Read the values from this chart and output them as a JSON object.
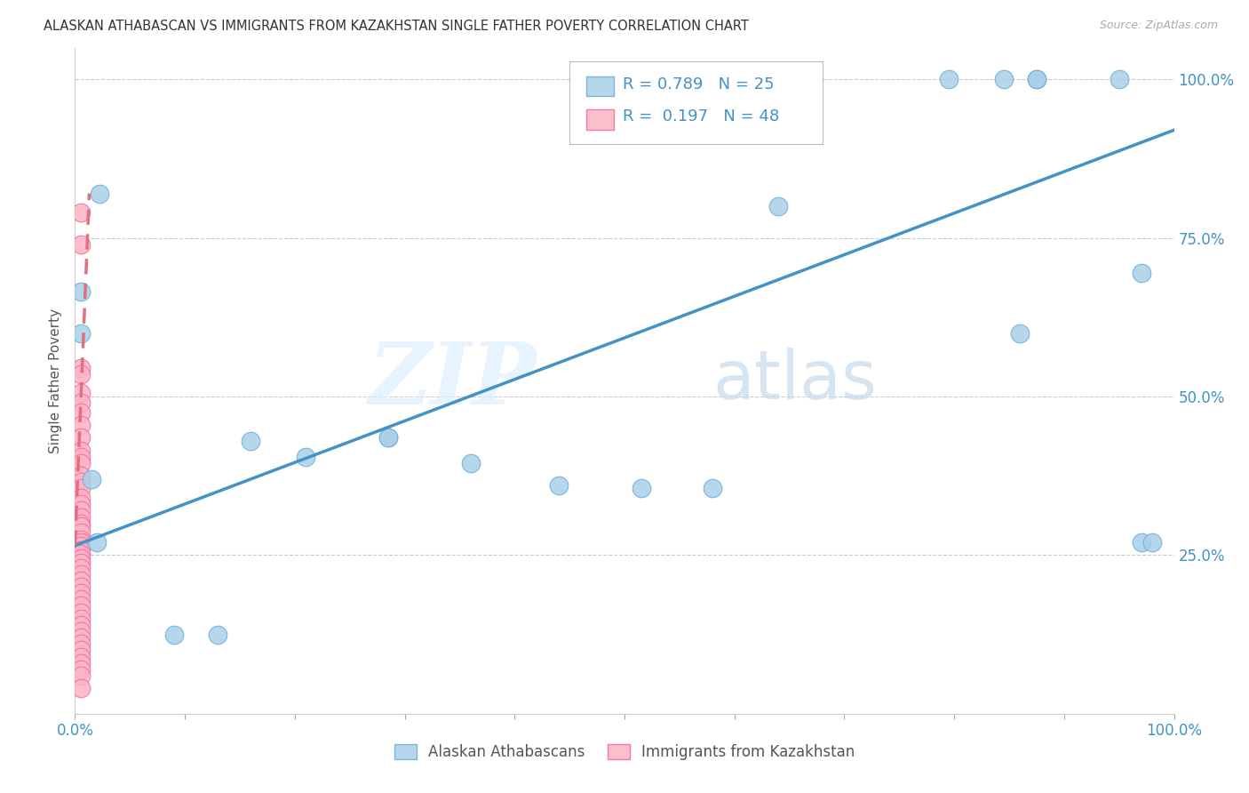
{
  "title": "ALASKAN ATHABASCAN VS IMMIGRANTS FROM KAZAKHSTAN SINGLE FATHER POVERTY CORRELATION CHART",
  "source": "Source: ZipAtlas.com",
  "ylabel": "Single Father Poverty",
  "watermark_zip": "ZIP",
  "watermark_atlas": "atlas",
  "legend_blue_r": "0.789",
  "legend_blue_n": "25",
  "legend_pink_r": "0.197",
  "legend_pink_n": "48",
  "legend1_label": "Alaskan Athabascans",
  "legend2_label": "Immigrants from Kazakhstan",
  "blue_color": "#a8cfe8",
  "blue_edge_color": "#6baed6",
  "pink_color": "#fbb4c3",
  "pink_edge_color": "#f768a1",
  "trendline_blue": "#4292c6",
  "trendline_pink": "#e07080",
  "blue_scatter": {
    "x": [
      0.022,
      0.005,
      0.005,
      0.015,
      0.16,
      0.21,
      0.285,
      0.36,
      0.285,
      0.44,
      0.58,
      0.64,
      0.795,
      0.845,
      0.86,
      0.875,
      0.875,
      0.95,
      0.97,
      0.97,
      0.98,
      0.02,
      0.09,
      0.13,
      0.515
    ],
    "y": [
      0.82,
      0.665,
      0.6,
      0.37,
      0.43,
      0.405,
      0.435,
      0.395,
      0.435,
      0.36,
      0.355,
      0.8,
      1.0,
      1.0,
      0.6,
      1.0,
      1.0,
      1.0,
      0.695,
      0.27,
      0.27,
      0.27,
      0.125,
      0.125,
      0.355
    ]
  },
  "pink_scatter": {
    "x": [
      0.005,
      0.005,
      0.005,
      0.005,
      0.005,
      0.005,
      0.005,
      0.005,
      0.005,
      0.005,
      0.005,
      0.005,
      0.005,
      0.005,
      0.005,
      0.005,
      0.005,
      0.005,
      0.005,
      0.005,
      0.005,
      0.005,
      0.005,
      0.005,
      0.005,
      0.005,
      0.005,
      0.005,
      0.005,
      0.005,
      0.005,
      0.005,
      0.005,
      0.005,
      0.005,
      0.005,
      0.005,
      0.005,
      0.005,
      0.005,
      0.005,
      0.005,
      0.005,
      0.005,
      0.005,
      0.005,
      0.005,
      0.005
    ],
    "y": [
      0.79,
      0.74,
      0.545,
      0.535,
      0.505,
      0.49,
      0.475,
      0.455,
      0.435,
      0.415,
      0.405,
      0.395,
      0.375,
      0.365,
      0.355,
      0.34,
      0.33,
      0.32,
      0.31,
      0.3,
      0.295,
      0.285,
      0.275,
      0.27,
      0.265,
      0.258,
      0.252,
      0.245,
      0.238,
      0.23,
      0.22,
      0.21,
      0.2,
      0.19,
      0.18,
      0.17,
      0.16,
      0.15,
      0.14,
      0.13,
      0.12,
      0.11,
      0.1,
      0.09,
      0.08,
      0.07,
      0.06,
      0.04
    ]
  },
  "blue_trendline_x": [
    0.0,
    1.0
  ],
  "blue_trendline_y": [
    0.265,
    0.92
  ],
  "pink_trendline_x": [
    0.0,
    0.013
  ],
  "pink_trendline_y": [
    0.265,
    0.82
  ],
  "xlim": [
    0.0,
    1.0
  ],
  "ylim": [
    0.0,
    1.05
  ],
  "xticks": [
    0.0,
    0.1,
    0.2,
    0.3,
    0.4,
    0.5,
    0.6,
    0.7,
    0.8,
    0.9,
    1.0
  ],
  "yticks": [
    0.25,
    0.5,
    0.75,
    1.0
  ],
  "ytick_labels": [
    "25.0%",
    "50.0%",
    "75.0%",
    "100.0%"
  ],
  "grid_color": "#cccccc",
  "grid_style": "--",
  "background_color": "#ffffff",
  "title_fontsize": 10.5,
  "source_fontsize": 9,
  "ylabel_fontsize": 11
}
